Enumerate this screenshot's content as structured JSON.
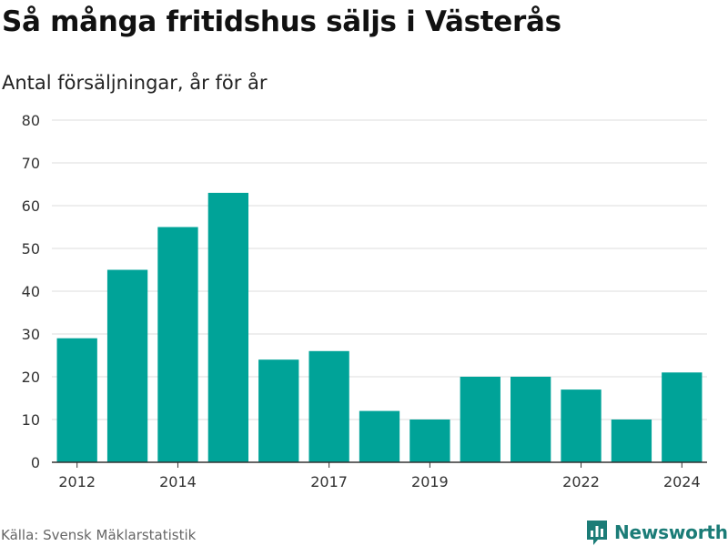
{
  "header": {
    "title": "Så många fritidshus säljs i Västerås",
    "subtitle": "Antal försäljningar, år för år"
  },
  "footer": {
    "source": "Källa: Svensk Mäklarstatistik",
    "brand": "Newsworthy",
    "brand_icon": "bar-chart-speech-bubble-icon"
  },
  "colors": {
    "bar": "#00a398",
    "grid": "#dddddd",
    "axis": "#333333",
    "brand": "#1b7c77"
  },
  "chart_data": {
    "type": "bar",
    "categories": [
      2012,
      2013,
      2014,
      2015,
      2016,
      2017,
      2018,
      2019,
      2020,
      2021,
      2022,
      2023,
      2024
    ],
    "values": [
      29,
      45,
      55,
      63,
      24,
      26,
      12,
      10,
      20,
      20,
      17,
      10,
      21
    ],
    "x_tick_labels": [
      "2012",
      "2014",
      "2017",
      "2019",
      "2022",
      "2024"
    ],
    "y_ticks": [
      0,
      10,
      20,
      30,
      40,
      50,
      60,
      70,
      80
    ],
    "ylim": [
      0,
      80
    ],
    "grid": true,
    "legend": "none"
  }
}
